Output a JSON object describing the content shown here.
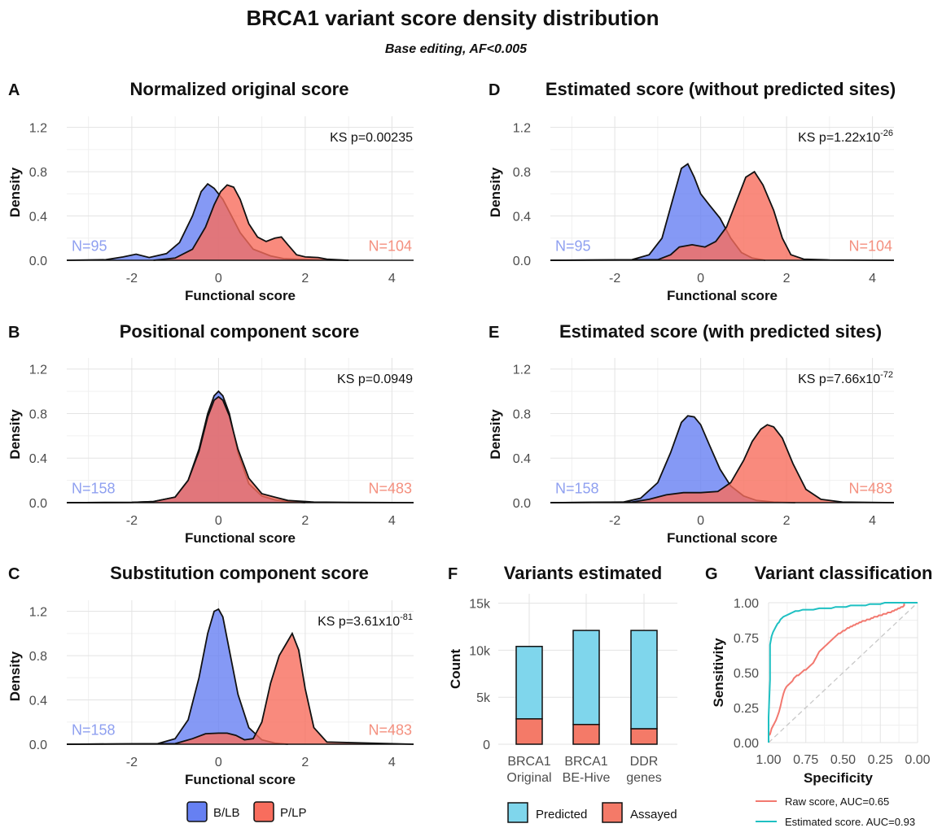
{
  "figure": {
    "title": "BRCA1 variant score density distribution",
    "subtitle": "Base editing, AF<0.005"
  },
  "colors": {
    "blb": "#6680f2",
    "plp": "#f86d5d",
    "predicted": "#7fd6ec",
    "assayed": "#f47a68",
    "roc_raw": "#f2786f",
    "roc_est": "#1ec0c2",
    "n_blb": "#8fa0f0",
    "n_plp": "#f4907f"
  },
  "legend": {
    "density": [
      "B/LB",
      "P/LP"
    ],
    "bars": [
      "Predicted",
      "Assayed"
    ],
    "roc": [
      "Raw score, AUC=0.65",
      "Estimated score. AUC=0.93"
    ]
  },
  "chart_data": [
    {
      "id": "A",
      "letter": "A",
      "type": "area",
      "title": "Normalized original score",
      "xlabel": "Functional score",
      "ylabel": "Density",
      "xlim": [
        -3.5,
        4.5
      ],
      "ylim": [
        0,
        1.3
      ],
      "xticks": [
        -2,
        0,
        2,
        4
      ],
      "yticks": [
        0.0,
        0.4,
        0.8,
        1.2
      ],
      "ks_label": "KS p=0.00235",
      "ks_exp": "",
      "n_labels": [
        "N=95",
        "N=104"
      ],
      "series": [
        {
          "name": "B/LB",
          "x": [
            -3.5,
            -2.6,
            -2.2,
            -1.9,
            -1.6,
            -1.2,
            -0.9,
            -0.6,
            -0.4,
            -0.25,
            -0.1,
            0.1,
            0.3,
            0.5,
            0.8,
            1.2,
            1.5,
            1.8,
            2.2,
            2.6,
            3.0
          ],
          "y": [
            0,
            0.005,
            0.03,
            0.055,
            0.025,
            0.06,
            0.16,
            0.4,
            0.62,
            0.69,
            0.65,
            0.55,
            0.4,
            0.25,
            0.1,
            0.04,
            0.015,
            0.01,
            0.005,
            0.002,
            0
          ]
        },
        {
          "name": "P/LP",
          "x": [
            -1.5,
            -1.0,
            -0.6,
            -0.3,
            -0.1,
            0.05,
            0.2,
            0.35,
            0.5,
            0.7,
            0.9,
            1.1,
            1.3,
            1.45,
            1.6,
            1.8,
            2.0,
            2.3,
            2.5,
            3.0
          ],
          "y": [
            0,
            0.02,
            0.1,
            0.3,
            0.5,
            0.62,
            0.68,
            0.66,
            0.55,
            0.33,
            0.21,
            0.17,
            0.2,
            0.21,
            0.14,
            0.05,
            0.03,
            0.025,
            0.01,
            0
          ]
        }
      ]
    },
    {
      "id": "B",
      "letter": "B",
      "type": "area",
      "title": "Positional component score",
      "xlabel": "Functional score",
      "ylabel": "Density",
      "xlim": [
        -3.5,
        4.5
      ],
      "ylim": [
        0,
        1.3
      ],
      "xticks": [
        -2,
        0,
        2,
        4
      ],
      "yticks": [
        0.0,
        0.4,
        0.8,
        1.2
      ],
      "ks_label": "KS p=0.0949",
      "ks_exp": "",
      "n_labels": [
        "N=158",
        "N=483"
      ],
      "series": [
        {
          "name": "B/LB",
          "x": [
            -3.5,
            -2.0,
            -1.5,
            -1.0,
            -0.7,
            -0.45,
            -0.25,
            -0.1,
            0.0,
            0.1,
            0.25,
            0.45,
            0.7,
            1.0,
            1.3,
            1.6,
            2.0
          ],
          "y": [
            0,
            0.002,
            0.01,
            0.05,
            0.2,
            0.48,
            0.8,
            0.96,
            1.0,
            0.96,
            0.8,
            0.45,
            0.17,
            0.06,
            0.025,
            0.01,
            0
          ]
        },
        {
          "name": "P/LP",
          "x": [
            -3.5,
            -2.0,
            -1.5,
            -1.0,
            -0.7,
            -0.45,
            -0.25,
            -0.1,
            0.0,
            0.1,
            0.25,
            0.45,
            0.7,
            1.0,
            1.3,
            1.6,
            2.2,
            3.0,
            4.5
          ],
          "y": [
            0,
            0.002,
            0.01,
            0.05,
            0.2,
            0.46,
            0.77,
            0.92,
            0.95,
            0.92,
            0.78,
            0.48,
            0.22,
            0.08,
            0.05,
            0.02,
            0.005,
            0.002,
            0
          ]
        }
      ]
    },
    {
      "id": "C",
      "letter": "C",
      "type": "area",
      "title": "Substitution component score",
      "xlabel": "Functional score",
      "ylabel": "Density",
      "xlim": [
        -3.5,
        4.5
      ],
      "ylim": [
        0,
        1.3
      ],
      "xticks": [
        -2,
        0,
        2,
        4
      ],
      "yticks": [
        0.0,
        0.4,
        0.8,
        1.2
      ],
      "ks_label": "KS p=3.61x10",
      "ks_exp": "-81",
      "n_labels": [
        "N=158",
        "N=483"
      ],
      "series": [
        {
          "name": "B/LB",
          "x": [
            -3.5,
            -1.4,
            -1.0,
            -0.7,
            -0.45,
            -0.25,
            -0.1,
            0.0,
            0.1,
            0.25,
            0.45,
            0.7,
            1.0,
            1.3,
            1.6
          ],
          "y": [
            0,
            0.005,
            0.05,
            0.22,
            0.6,
            1.0,
            1.2,
            1.22,
            1.15,
            0.85,
            0.45,
            0.15,
            0.04,
            0.01,
            0
          ]
        },
        {
          "name": "P/LP",
          "x": [
            -3.5,
            -1.0,
            -0.6,
            -0.3,
            0.0,
            0.2,
            0.4,
            0.6,
            0.8,
            1.0,
            1.2,
            1.4,
            1.55,
            1.7,
            1.85,
            2.0,
            2.2,
            2.5,
            4.5
          ],
          "y": [
            0,
            0.005,
            0.05,
            0.095,
            0.1,
            0.1,
            0.08,
            0.04,
            0.05,
            0.2,
            0.55,
            0.8,
            0.9,
            1.0,
            0.85,
            0.5,
            0.15,
            0.02,
            0
          ]
        }
      ]
    },
    {
      "id": "D",
      "letter": "D",
      "type": "area",
      "title": "Estimated score (without predicted sites)",
      "xlabel": "Functional score",
      "ylabel": "Density",
      "xlim": [
        -3.5,
        4.5
      ],
      "ylim": [
        0,
        1.3
      ],
      "xticks": [
        -2,
        0,
        2,
        4
      ],
      "yticks": [
        0.0,
        0.4,
        0.8,
        1.2
      ],
      "ks_label": "KS p=1.22x10",
      "ks_exp": "-26",
      "n_labels": [
        "N=95",
        "N=104"
      ],
      "series": [
        {
          "name": "B/LB",
          "x": [
            -3.5,
            -1.6,
            -1.2,
            -0.9,
            -0.65,
            -0.45,
            -0.3,
            -0.15,
            0.0,
            0.2,
            0.45,
            0.7,
            0.95,
            1.2,
            1.5
          ],
          "y": [
            0,
            0.005,
            0.05,
            0.2,
            0.55,
            0.83,
            0.87,
            0.75,
            0.6,
            0.5,
            0.38,
            0.2,
            0.07,
            0.02,
            0
          ]
        },
        {
          "name": "P/LP",
          "x": [
            -3.5,
            -1.0,
            -0.7,
            -0.5,
            -0.2,
            0.1,
            0.35,
            0.6,
            0.85,
            1.05,
            1.25,
            1.45,
            1.7,
            1.9,
            2.1,
            2.4,
            3.0,
            4.5
          ],
          "y": [
            0,
            0.005,
            0.05,
            0.12,
            0.14,
            0.12,
            0.17,
            0.3,
            0.55,
            0.75,
            0.8,
            0.68,
            0.45,
            0.2,
            0.05,
            0.01,
            0.003,
            0
          ]
        }
      ]
    },
    {
      "id": "E",
      "letter": "E",
      "type": "area",
      "title": "Estimated score (with predicted sites)",
      "xlabel": "Functional score",
      "ylabel": "Density",
      "xlim": [
        -3.5,
        4.5
      ],
      "ylim": [
        0,
        1.3
      ],
      "xticks": [
        -2,
        0,
        2,
        4
      ],
      "yticks": [
        0.0,
        0.4,
        0.8,
        1.2
      ],
      "ks_label": "KS p=7.66x10",
      "ks_exp": "-72",
      "n_labels": [
        "N=158",
        "N=483"
      ],
      "series": [
        {
          "name": "B/LB",
          "x": [
            -3.5,
            -1.8,
            -1.4,
            -1.0,
            -0.7,
            -0.45,
            -0.3,
            -0.15,
            0.0,
            0.2,
            0.45,
            0.7,
            1.0,
            1.3,
            1.7,
            2.2
          ],
          "y": [
            0,
            0.005,
            0.04,
            0.18,
            0.45,
            0.72,
            0.78,
            0.77,
            0.7,
            0.52,
            0.3,
            0.15,
            0.06,
            0.02,
            0.005,
            0
          ]
        },
        {
          "name": "P/LP",
          "x": [
            -3.5,
            -1.6,
            -1.2,
            -0.8,
            -0.4,
            0.0,
            0.4,
            0.7,
            1.0,
            1.2,
            1.4,
            1.55,
            1.7,
            1.9,
            2.15,
            2.45,
            2.8,
            3.3,
            4.5
          ],
          "y": [
            0,
            0.005,
            0.03,
            0.07,
            0.09,
            0.09,
            0.1,
            0.18,
            0.38,
            0.55,
            0.66,
            0.7,
            0.68,
            0.58,
            0.35,
            0.12,
            0.03,
            0.005,
            0
          ]
        }
      ]
    },
    {
      "id": "F",
      "letter": "F",
      "type": "bar",
      "title": "Variants estimated",
      "xlabel": "",
      "ylabel": "Count",
      "ylim": [
        0,
        16000
      ],
      "yticks": [
        0,
        5000,
        10000,
        15000
      ],
      "ytick_labels": [
        "0",
        "5k",
        "10k",
        "15k"
      ],
      "categories": [
        [
          "BRCA1",
          "Original"
        ],
        [
          "BRCA1",
          "BE-Hive"
        ],
        [
          "DDR",
          "genes"
        ]
      ],
      "series": [
        {
          "name": "Assayed",
          "values": [
            2700,
            2100,
            1650
          ]
        },
        {
          "name": "Predicted",
          "values": [
            7700,
            10000,
            10450
          ]
        }
      ]
    },
    {
      "id": "G",
      "letter": "G",
      "type": "line",
      "title": "Variant classification",
      "xlabel": "Specificity",
      "ylabel": "Sensitivity",
      "xlim": [
        1.0,
        0.0
      ],
      "ylim": [
        0.0,
        1.0
      ],
      "xticks": [
        1.0,
        0.75,
        0.5,
        0.25,
        0.0
      ],
      "xtick_labels": [
        "1.00",
        "0.75",
        "0.50",
        "0.25",
        "0.00"
      ],
      "yticks": [
        0.0,
        0.25,
        0.5,
        0.75,
        1.0
      ],
      "ytick_labels": [
        "0.00",
        "0.25",
        "0.50",
        "0.75",
        "1.00"
      ],
      "series": [
        {
          "name": "Raw score, AUC=0.65",
          "x": [
            1.0,
            1.0,
            0.99,
            0.98,
            0.97,
            0.96,
            0.95,
            0.94,
            0.93,
            0.92,
            0.91,
            0.9,
            0.89,
            0.88,
            0.87,
            0.86,
            0.85,
            0.84,
            0.83,
            0.82,
            0.81,
            0.8,
            0.79,
            0.78,
            0.77,
            0.76,
            0.75,
            0.74,
            0.73,
            0.72,
            0.71,
            0.7,
            0.69,
            0.68,
            0.67,
            0.66,
            0.65,
            0.64,
            0.63,
            0.62,
            0.61,
            0.6,
            0.59,
            0.58,
            0.57,
            0.56,
            0.55,
            0.54,
            0.53,
            0.52,
            0.51,
            0.5,
            0.49,
            0.48,
            0.47,
            0.46,
            0.45,
            0.44,
            0.43,
            0.42,
            0.41,
            0.4,
            0.39,
            0.38,
            0.37,
            0.36,
            0.35,
            0.34,
            0.33,
            0.32,
            0.31,
            0.3,
            0.29,
            0.28,
            0.27,
            0.26,
            0.25,
            0.24,
            0.23,
            0.22,
            0.21,
            0.2,
            0.19,
            0.18,
            0.17,
            0.16,
            0.15,
            0.14,
            0.13,
            0.12,
            0.11,
            0.1,
            0.09,
            0.09,
            0.0
          ],
          "y": [
            0.0,
            0.05,
            0.06,
            0.1,
            0.12,
            0.14,
            0.16,
            0.19,
            0.22,
            0.26,
            0.31,
            0.35,
            0.38,
            0.4,
            0.41,
            0.42,
            0.43,
            0.44,
            0.46,
            0.47,
            0.48,
            0.48,
            0.49,
            0.5,
            0.51,
            0.52,
            0.52,
            0.53,
            0.54,
            0.55,
            0.56,
            0.57,
            0.59,
            0.61,
            0.63,
            0.65,
            0.66,
            0.67,
            0.68,
            0.69,
            0.7,
            0.71,
            0.72,
            0.73,
            0.74,
            0.75,
            0.76,
            0.77,
            0.78,
            0.78,
            0.79,
            0.8,
            0.8,
            0.81,
            0.82,
            0.82,
            0.83,
            0.83,
            0.84,
            0.84,
            0.85,
            0.85,
            0.86,
            0.86,
            0.87,
            0.87,
            0.87,
            0.88,
            0.88,
            0.88,
            0.89,
            0.89,
            0.9,
            0.9,
            0.9,
            0.91,
            0.91,
            0.91,
            0.92,
            0.92,
            0.92,
            0.93,
            0.93,
            0.93,
            0.94,
            0.94,
            0.95,
            0.95,
            0.96,
            0.96,
            0.97,
            0.97,
            0.98,
            1.0,
            1.0
          ]
        },
        {
          "name": "Estimated score. AUC=0.93",
          "x": [
            1.0,
            1.0,
            0.99,
            0.99,
            0.98,
            0.97,
            0.96,
            0.95,
            0.94,
            0.93,
            0.92,
            0.91,
            0.9,
            0.88,
            0.86,
            0.84,
            0.82,
            0.8,
            0.77,
            0.74,
            0.7,
            0.66,
            0.62,
            0.58,
            0.55,
            0.52,
            0.48,
            0.45,
            0.42,
            0.38,
            0.35,
            0.32,
            0.29,
            0.25,
            0.22,
            0.18,
            0.14,
            0.1,
            0.06,
            0.0
          ],
          "y": [
            0.0,
            0.18,
            0.45,
            0.7,
            0.76,
            0.79,
            0.81,
            0.83,
            0.85,
            0.86,
            0.88,
            0.89,
            0.9,
            0.91,
            0.92,
            0.93,
            0.94,
            0.94,
            0.95,
            0.95,
            0.95,
            0.96,
            0.96,
            0.96,
            0.97,
            0.97,
            0.97,
            0.98,
            0.98,
            0.98,
            0.98,
            0.99,
            0.99,
            0.99,
            1.0,
            1.0,
            1.0,
            1.0,
            1.0,
            1.0
          ]
        }
      ]
    }
  ]
}
